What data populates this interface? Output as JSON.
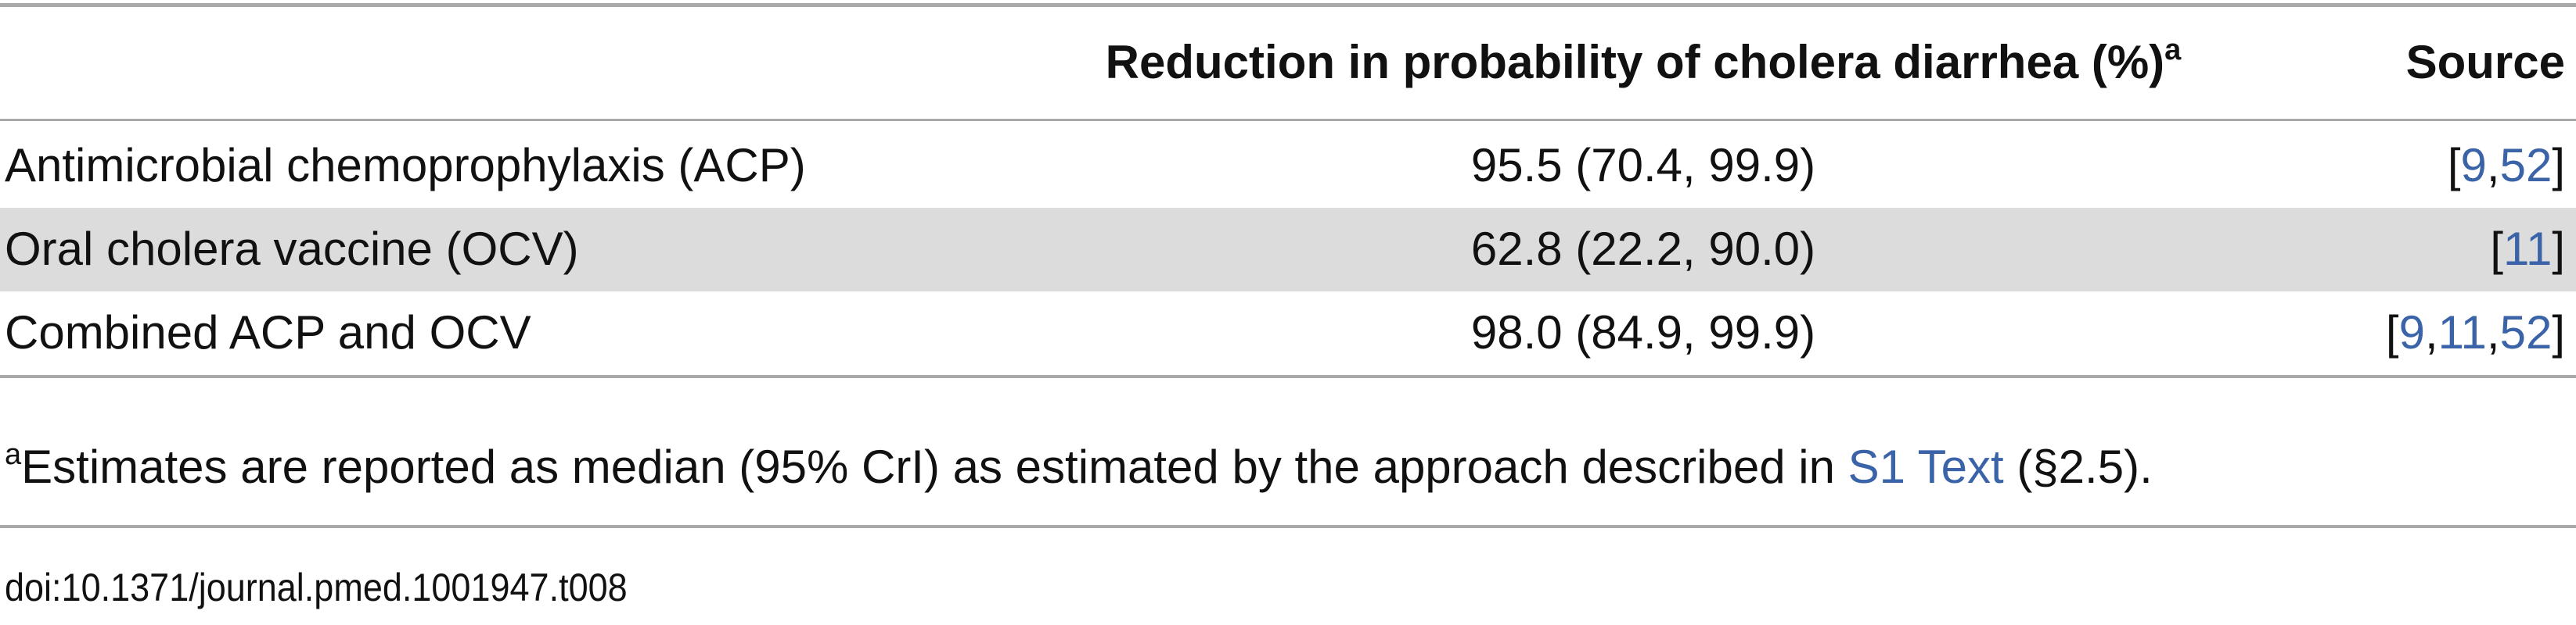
{
  "table": {
    "columns": [
      "Reduction in probability of cholera diarrhea (%)",
      "Source"
    ],
    "header_note": "a",
    "citation_format": {
      "open": "[",
      "separator": ",",
      "close": "]"
    },
    "rows": [
      {
        "label": "Antimicrobial chemoprophylaxis (ACP)",
        "estimate": "95.5 (70.4, 99.9)",
        "sources": [
          "9",
          "52"
        ]
      },
      {
        "label": "Oral cholera vaccine (OCV)",
        "estimate": "62.8 (22.2, 90.0)",
        "sources": [
          "11"
        ]
      },
      {
        "label": "Combined ACP and OCV",
        "estimate": "98.0 (84.9, 99.9)",
        "sources": [
          "9",
          "11",
          "52"
        ]
      }
    ]
  },
  "footnote": {
    "mark": "a",
    "text": "Estimates are reported as median (95% CrI) as estimated by the approach described in ",
    "link": "S1 Text",
    "after": " (§2.5)."
  },
  "doi": "doi:10.1371/journal.pmed.1001947.t008"
}
